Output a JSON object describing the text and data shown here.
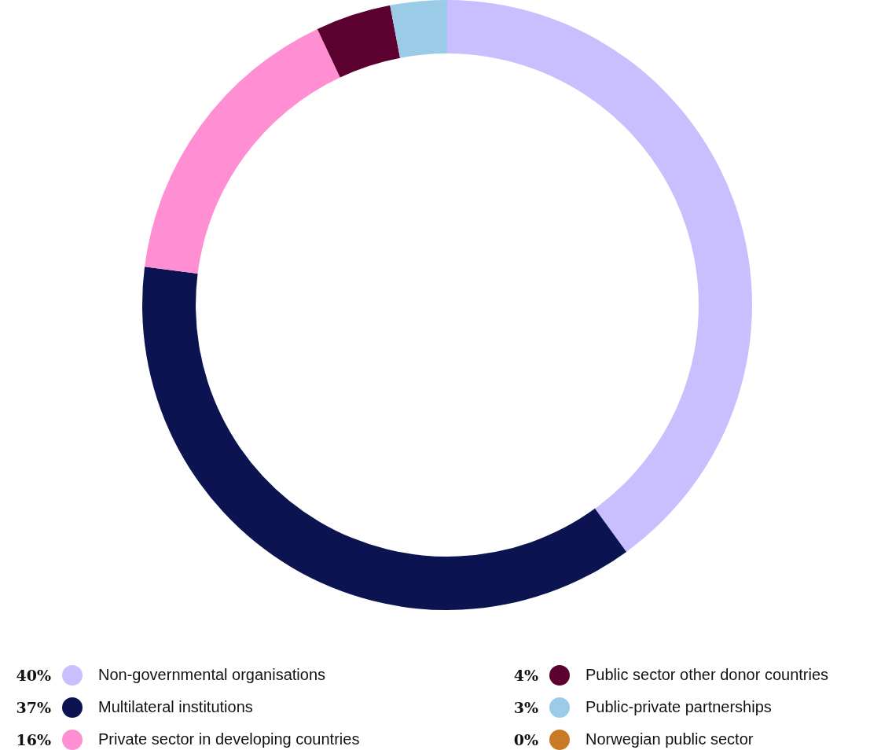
{
  "chart_data": {
    "type": "donut",
    "categories": [
      "Non-governmental organisations",
      "Multilateral institutions",
      "Private sector in developing countries",
      "Public sector other donor countries",
      "Public-private partnerships",
      "Norwegian public sector"
    ],
    "values": [
      40,
      37,
      16,
      4,
      3,
      0
    ],
    "colors": [
      "#c9bfff",
      "#0b1450",
      "#ff8fd2",
      "#5c0030",
      "#9acce8",
      "#c87a26"
    ],
    "value_labels": [
      "40%",
      "37%",
      "16%",
      "4%",
      "3%",
      "0%"
    ],
    "legend": "bottom"
  }
}
